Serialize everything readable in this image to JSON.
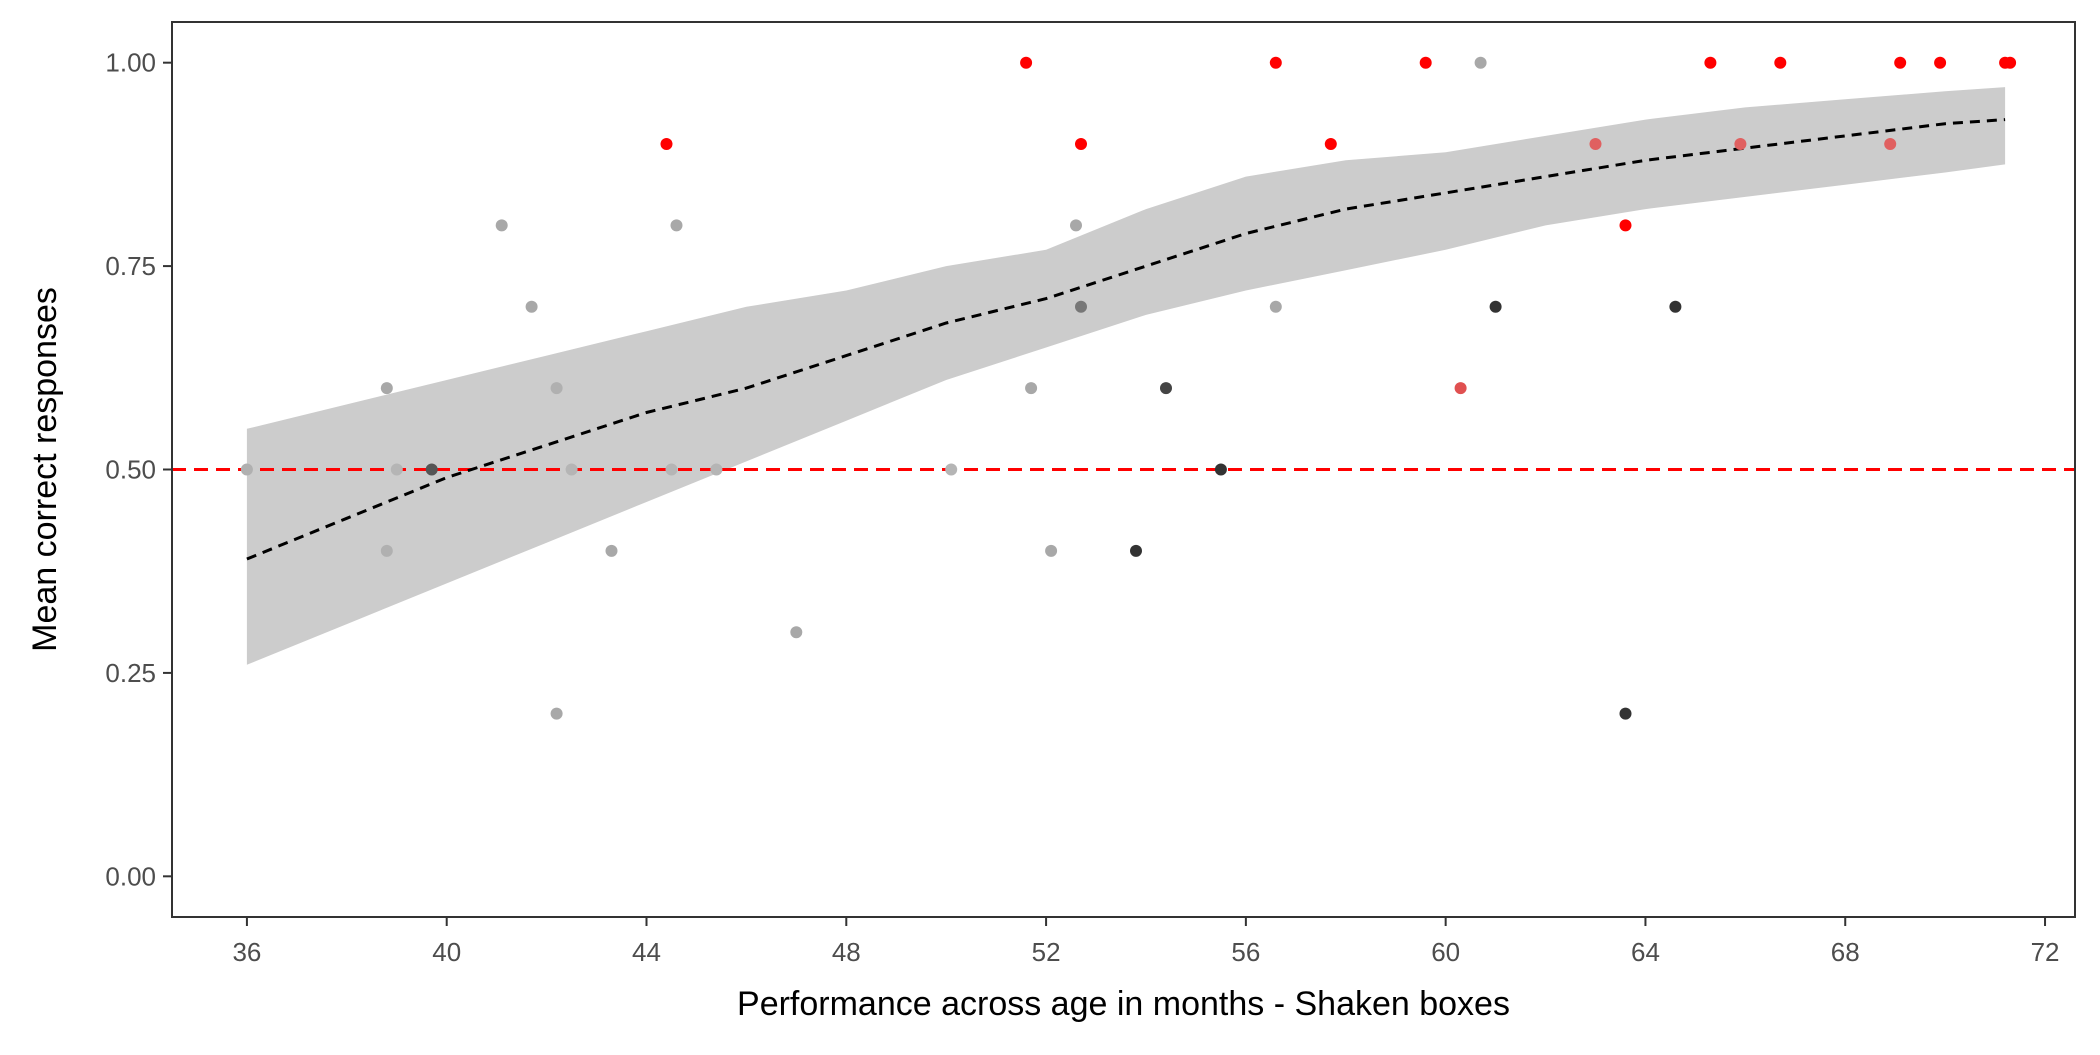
{
  "chart_data": {
    "type": "scatter",
    "xlabel": "Performance across age in months - Shaken boxes",
    "ylabel": "Mean correct responses",
    "xlim": [
      34.5,
      72.6
    ],
    "ylim": [
      -0.05,
      1.05
    ],
    "x_ticks": [
      36,
      40,
      44,
      48,
      52,
      56,
      60,
      64,
      68,
      72
    ],
    "x_tick_labels": [
      "36",
      "40",
      "44",
      "48",
      "52",
      "56",
      "60",
      "64",
      "68",
      "72"
    ],
    "y_ticks": [
      0,
      0.25,
      0.5,
      0.75,
      1
    ],
    "y_tick_labels": [
      "0.00",
      "0.25",
      "0.50",
      "0.75",
      "1.00"
    ],
    "grid": false,
    "reference_line": {
      "y": 0.5,
      "color": "#ff0000",
      "style": "dashed"
    },
    "fit": {
      "style": "dashed",
      "color": "#000000",
      "band_color": "#cccccc",
      "x": [
        36.0,
        38.0,
        40.0,
        42.0,
        44.0,
        46.0,
        48.0,
        50.0,
        52.0,
        54.0,
        56.0,
        58.0,
        60.0,
        62.0,
        64.0,
        66.0,
        68.0,
        70.0,
        71.2
      ],
      "y": [
        0.39,
        0.44,
        0.49,
        0.53,
        0.57,
        0.6,
        0.64,
        0.68,
        0.71,
        0.75,
        0.79,
        0.82,
        0.84,
        0.86,
        0.88,
        0.895,
        0.91,
        0.925,
        0.93
      ],
      "lower": [
        0.26,
        0.31,
        0.36,
        0.41,
        0.46,
        0.51,
        0.56,
        0.61,
        0.65,
        0.69,
        0.72,
        0.745,
        0.77,
        0.8,
        0.82,
        0.835,
        0.85,
        0.865,
        0.875
      ],
      "upper": [
        0.55,
        0.58,
        0.61,
        0.64,
        0.67,
        0.7,
        0.72,
        0.75,
        0.77,
        0.82,
        0.86,
        0.88,
        0.89,
        0.91,
        0.93,
        0.945,
        0.955,
        0.965,
        0.97
      ]
    },
    "points": [
      {
        "x": 36.0,
        "y": 0.5,
        "color": "#b0b0b0"
      },
      {
        "x": 38.8,
        "y": 0.6,
        "color": "#a8a8a8"
      },
      {
        "x": 38.8,
        "y": 0.4,
        "color": "#b0b0b0"
      },
      {
        "x": 39.0,
        "y": 0.5,
        "color": "#b5b5b5"
      },
      {
        "x": 39.7,
        "y": 0.5,
        "color": "#555555"
      },
      {
        "x": 41.1,
        "y": 0.8,
        "color": "#a8a8a8"
      },
      {
        "x": 41.7,
        "y": 0.7,
        "color": "#a8a8a8"
      },
      {
        "x": 42.2,
        "y": 0.6,
        "color": "#b0b0b0"
      },
      {
        "x": 42.2,
        "y": 0.2,
        "color": "#a8a8a8"
      },
      {
        "x": 42.5,
        "y": 0.5,
        "color": "#b5b5b5"
      },
      {
        "x": 43.3,
        "y": 0.4,
        "color": "#a8a8a8"
      },
      {
        "x": 44.4,
        "y": 0.9,
        "color": "#ff0000"
      },
      {
        "x": 44.5,
        "y": 0.5,
        "color": "#b5b5b5"
      },
      {
        "x": 44.6,
        "y": 0.8,
        "color": "#a8a8a8"
      },
      {
        "x": 45.4,
        "y": 0.5,
        "color": "#b5b5b5"
      },
      {
        "x": 47.0,
        "y": 0.3,
        "color": "#a8a8a8"
      },
      {
        "x": 50.1,
        "y": 0.5,
        "color": "#b5b5b5"
      },
      {
        "x": 51.6,
        "y": 1.0,
        "color": "#ff0000"
      },
      {
        "x": 51.7,
        "y": 0.6,
        "color": "#a8a8a8"
      },
      {
        "x": 52.1,
        "y": 0.4,
        "color": "#a8a8a8"
      },
      {
        "x": 52.6,
        "y": 0.8,
        "color": "#a8a8a8"
      },
      {
        "x": 52.7,
        "y": 0.7,
        "color": "#777777"
      },
      {
        "x": 52.7,
        "y": 0.9,
        "color": "#ff0000"
      },
      {
        "x": 53.8,
        "y": 0.4,
        "color": "#333333"
      },
      {
        "x": 54.4,
        "y": 0.6,
        "color": "#444444"
      },
      {
        "x": 55.5,
        "y": 0.5,
        "color": "#333333"
      },
      {
        "x": 56.6,
        "y": 1.0,
        "color": "#ff0000"
      },
      {
        "x": 56.6,
        "y": 0.7,
        "color": "#a8a8a8"
      },
      {
        "x": 57.7,
        "y": 0.9,
        "color": "#ff0000"
      },
      {
        "x": 59.6,
        "y": 1.0,
        "color": "#ff0000"
      },
      {
        "x": 60.3,
        "y": 0.6,
        "color": "#e05050"
      },
      {
        "x": 60.7,
        "y": 1.0,
        "color": "#a8a8a8"
      },
      {
        "x": 61.0,
        "y": 0.7,
        "color": "#333333"
      },
      {
        "x": 63.0,
        "y": 0.9,
        "color": "#e06060"
      },
      {
        "x": 63.6,
        "y": 0.8,
        "color": "#ff0000"
      },
      {
        "x": 63.6,
        "y": 0.2,
        "color": "#333333"
      },
      {
        "x": 64.6,
        "y": 0.7,
        "color": "#333333"
      },
      {
        "x": 65.3,
        "y": 1.0,
        "color": "#ff0000"
      },
      {
        "x": 65.9,
        "y": 0.9,
        "color": "#e06060"
      },
      {
        "x": 66.7,
        "y": 1.0,
        "color": "#ff0000"
      },
      {
        "x": 68.9,
        "y": 0.9,
        "color": "#e06060"
      },
      {
        "x": 69.1,
        "y": 1.0,
        "color": "#ff0000"
      },
      {
        "x": 69.9,
        "y": 1.0,
        "color": "#ff0000"
      },
      {
        "x": 71.2,
        "y": 1.0,
        "color": "#ff0000"
      },
      {
        "x": 71.3,
        "y": 1.0,
        "color": "#ff0000"
      }
    ]
  }
}
